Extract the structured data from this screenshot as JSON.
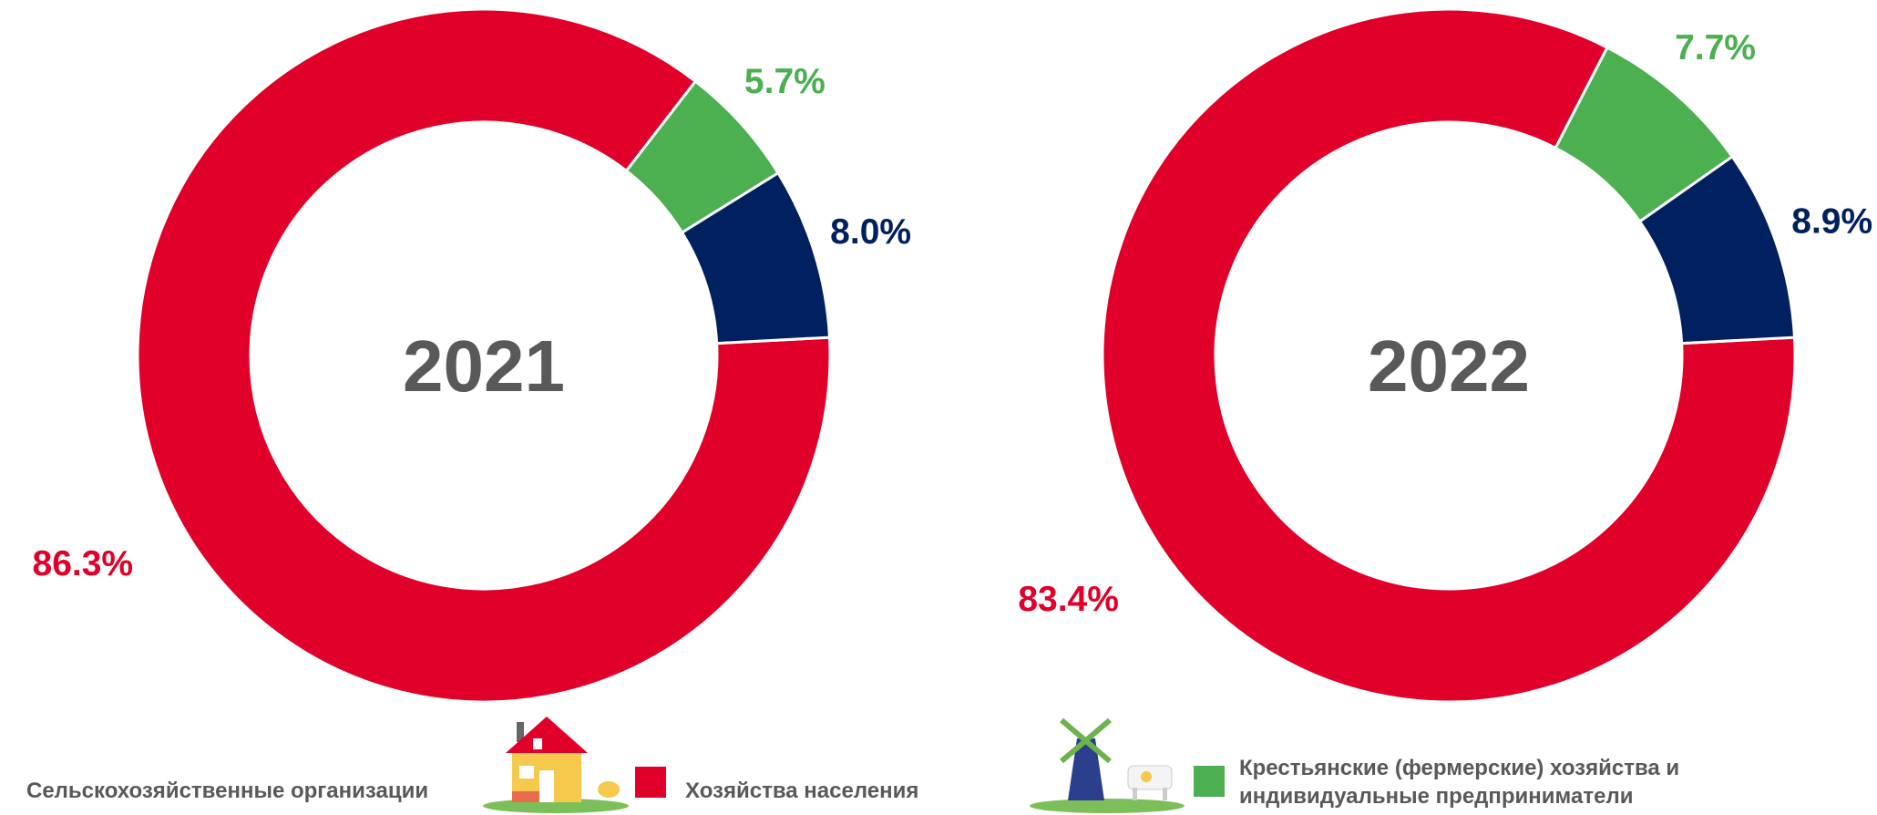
{
  "legend": {
    "categories": [
      "Сельскохозяйственные организации",
      "Хозяйства населения",
      "Крестьянские (фермерские) хозяйства и индивидуальные предприниматели"
    ],
    "colors": [
      "#002060",
      "#e0002a",
      "#4caf50"
    ]
  },
  "chart_data": [
    {
      "type": "donut",
      "title": "2021",
      "values": [
        8.0,
        86.3,
        5.7
      ],
      "value_labels": [
        "8.0%",
        "86.3%",
        "5.7%"
      ]
    },
    {
      "type": "donut",
      "title": "2022",
      "values": [
        8.9,
        83.4,
        7.7
      ],
      "value_labels": [
        "8.9%",
        "83.4%",
        "7.7%"
      ]
    }
  ]
}
